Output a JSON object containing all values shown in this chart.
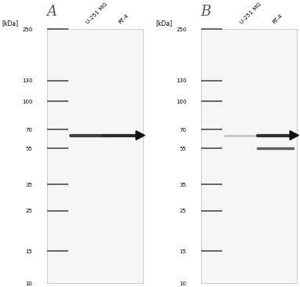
{
  "panel_labels": [
    "A",
    "B"
  ],
  "col_labels": [
    "U-251 MG",
    "RT-4"
  ],
  "kda_label": "[kDa]",
  "marker_weights": [
    250,
    130,
    100,
    70,
    55,
    35,
    25,
    15,
    10
  ],
  "bg_color": "#ffffff",
  "blot_bg": "#f7f5f5",
  "marker_color": "#646464",
  "band_color_dark": "#2a2a2a",
  "band_color_mid": "#505050",
  "band_color_light": "#c0bebe",
  "arrow_color": "#111111",
  "panel_A": {
    "lane1_band_kda": 65,
    "lane1_band_darkness": 0.75,
    "lane2_band_kda": 65,
    "lane2_band_darkness": 0.9,
    "arrow_kda": 65
  },
  "panel_B": {
    "lane1_band_kda": 65,
    "lane1_band_darkness": 0.25,
    "lane2_band1_kda": 65,
    "lane2_band1_darkness": 0.85,
    "lane2_band2_kda": 55,
    "lane2_band2_darkness": 0.6,
    "arrow_kda": 65
  }
}
